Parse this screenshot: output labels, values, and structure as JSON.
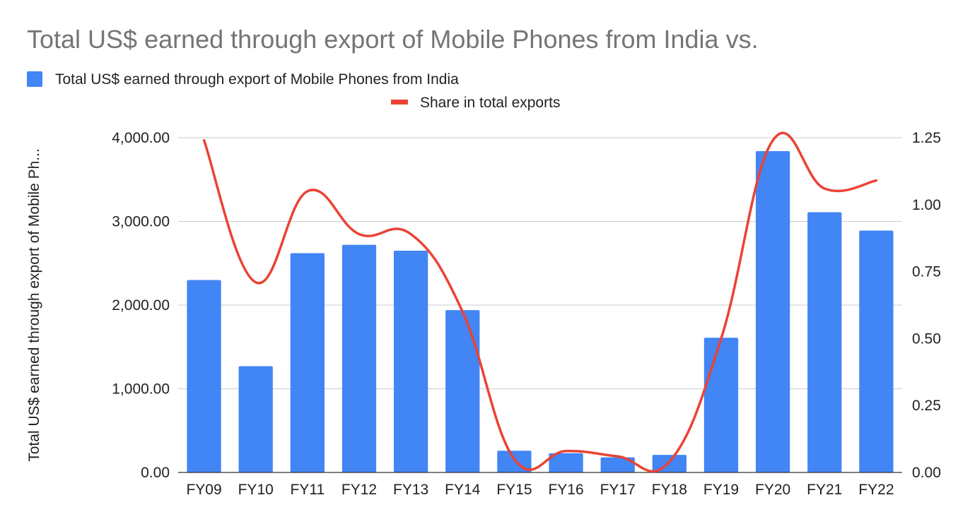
{
  "chart_data": {
    "type": "bar",
    "title": "Total US$ earned through export of Mobile Phones from India  vs.",
    "ylabel": "Total US$ earned through export of Mobile Ph...",
    "xlabel": "",
    "categories": [
      "FY09",
      "FY10",
      "FY11",
      "FY12",
      "FY13",
      "FY14",
      "FY15",
      "FY16",
      "FY17",
      "FY18",
      "FY19",
      "FY20",
      "FY21",
      "FY22"
    ],
    "series": [
      {
        "name": "Total US$ earned through export of Mobile Phones from India",
        "type": "bar",
        "axis": "left",
        "color": "#4285f4",
        "values": [
          2300,
          1270,
          2620,
          2720,
          2650,
          1940,
          260,
          230,
          180,
          210,
          1610,
          3840,
          3110,
          2890
        ]
      },
      {
        "name": "Share in total exports",
        "type": "line",
        "axis": "right",
        "color": "#ea4335",
        "values": [
          1.24,
          0.71,
          1.05,
          0.89,
          0.89,
          0.6,
          0.05,
          0.08,
          0.06,
          0.04,
          0.5,
          1.24,
          1.06,
          1.09
        ]
      }
    ],
    "ylim": [
      0,
      4000
    ],
    "yticks": [
      "0.00",
      "1,000.00",
      "2,000.00",
      "3,000.00",
      "4,000.00"
    ],
    "y2lim": [
      0,
      1.25
    ],
    "y2ticks": [
      "0.00",
      "0.25",
      "0.50",
      "0.75",
      "1.00",
      "1.25"
    ],
    "grid": true,
    "legend_position": "top-left"
  }
}
